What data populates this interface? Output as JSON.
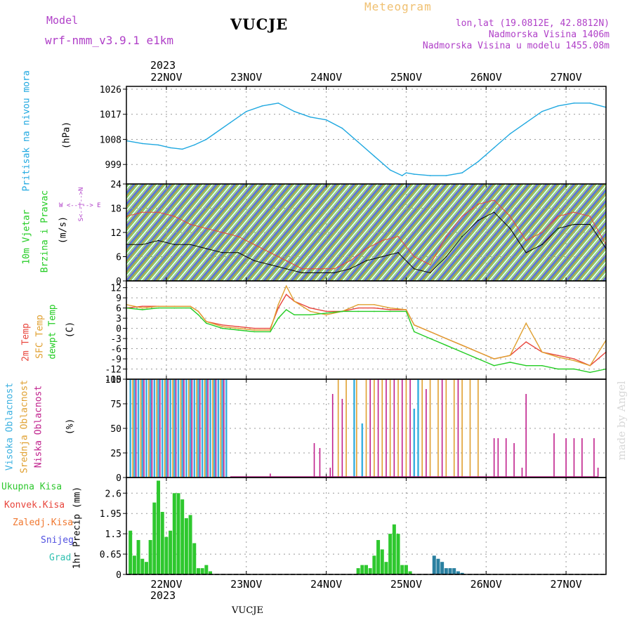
{
  "header": {
    "model_label": "Model",
    "model_name": "wrf-nmm_v3.9.1  e1km",
    "station": "VUCJE",
    "product": "Meteogram",
    "lonlat": "lon,lat (19.0812E, 42.8812N)",
    "elevation": "Nadmorska Visina 1406m",
    "model_elevation": "Nadmorska Visina u modelu 1455.08m",
    "top_year": "2023",
    "bottom_year": "2023",
    "footer_station": "VUCJE",
    "watermark": "made by Angel"
  },
  "colors": {
    "pressure": "#1fa8e0",
    "temp2m": "#e8453c",
    "sfc": "#e0a030",
    "dew": "#22cc22",
    "cloud_high": "#3ab0e0",
    "cloud_mid": "#e0a030",
    "cloud_low": "#c0208c",
    "precip_total": "#2ec82e",
    "model_label": "#b040c8",
    "product": "#f0c070"
  },
  "days": [
    "22NOV",
    "23NOV",
    "24NOV",
    "25NOV",
    "26NOV",
    "27NOV"
  ],
  "chart_data": [
    {
      "type": "line",
      "panel": "pressure",
      "ylabel_rot": "Pritisak na nivou mora",
      "unit": "(hPa)",
      "yticks": [
        999,
        1008,
        1017,
        1026
      ],
      "ylim": [
        992,
        1027
      ],
      "xlim": [
        21.5,
        27.5
      ],
      "grid": true,
      "series": [
        {
          "x": [
            21.5,
            21.7,
            21.9,
            22.05,
            22.2,
            22.35,
            22.5,
            22.6,
            22.8,
            23.0,
            23.2,
            23.4,
            23.6,
            23.8,
            24.0,
            24.2,
            24.4,
            24.6,
            24.8,
            24.95,
            25.0,
            25.1,
            25.3,
            25.5,
            25.7,
            25.9,
            26.1,
            26.3,
            26.5,
            26.7,
            26.9,
            27.1,
            27.3,
            27.5
          ],
          "y": [
            1007.5,
            1006.5,
            1006,
            1005,
            1004.5,
            1006,
            1008,
            1010,
            1014,
            1018,
            1020,
            1021,
            1018,
            1016,
            1015,
            1012,
            1007,
            1002,
            997,
            995,
            996,
            995.5,
            995,
            995,
            996,
            1000,
            1005,
            1010,
            1014,
            1018,
            1020,
            1021,
            1021,
            1019.5
          ]
        }
      ]
    },
    {
      "type": "line",
      "panel": "wind",
      "ylabel_rot1": "10m Vjetar",
      "ylabel_rot2": "Brzina i Pravac",
      "unit": "(m/s)",
      "compass": "W <--|--> E",
      "compass_v": "S<--|-->N",
      "yticks": [
        0,
        6,
        12,
        18,
        24
      ],
      "ylim": [
        0,
        24
      ],
      "xlim": [
        21.5,
        27.5
      ],
      "grid": true,
      "series": [
        {
          "name": "wind speed",
          "x": [
            21.5,
            21.7,
            21.9,
            22.1,
            22.3,
            22.5,
            22.7,
            22.9,
            23.1,
            23.3,
            23.5,
            23.7,
            23.9,
            24.1,
            24.3,
            24.5,
            24.7,
            24.9,
            25.1,
            25.3,
            25.5,
            25.7,
            25.9,
            26.1,
            26.3,
            26.5,
            26.7,
            26.9,
            27.1,
            27.3,
            27.5
          ],
          "y": [
            9,
            9,
            10,
            9,
            9,
            8,
            7,
            7,
            5,
            4,
            3,
            2,
            2,
            2,
            3,
            5,
            6,
            7,
            3,
            2,
            6,
            11,
            15,
            17,
            13,
            7,
            9,
            13,
            14,
            14,
            8
          ]
        },
        {
          "name": "wind gust",
          "x": [
            21.5,
            21.7,
            21.9,
            22.1,
            22.3,
            22.5,
            22.7,
            22.9,
            23.1,
            23.3,
            23.5,
            23.7,
            23.9,
            24.1,
            24.3,
            24.5,
            24.7,
            24.9,
            25.1,
            25.3,
            25.5,
            25.7,
            25.9,
            26.1,
            26.3,
            26.5,
            26.7,
            26.9,
            27.1,
            27.3,
            27.5
          ],
          "y": [
            16,
            17,
            17,
            16,
            14,
            13,
            12,
            11,
            9,
            7,
            5,
            3,
            3,
            3,
            5,
            8,
            10,
            11,
            6,
            4,
            11,
            16,
            19,
            20,
            16,
            10,
            12,
            16,
            17,
            16,
            9
          ]
        }
      ]
    },
    {
      "type": "line",
      "panel": "temperature",
      "ylabel_rot1": "2m Temp",
      "ylabel_rot2": "SFC Temp",
      "ylabel_rot3": "dewpt Temp",
      "unit": "(C)",
      "yticks": [
        -15,
        -12,
        -9,
        -6,
        -3,
        0,
        3,
        6,
        9,
        12
      ],
      "ylim": [
        -15,
        14
      ],
      "xlim": [
        21.5,
        27.5
      ],
      "grid": true,
      "series": [
        {
          "name": "2m Temp",
          "x": [
            21.5,
            21.7,
            21.9,
            22.1,
            22.3,
            22.4,
            22.5,
            22.7,
            22.9,
            23.1,
            23.3,
            23.4,
            23.5,
            23.6,
            23.8,
            24.0,
            24.2,
            24.4,
            24.6,
            24.8,
            25.0,
            25.1,
            25.3,
            25.5,
            25.7,
            25.9,
            26.1,
            26.3,
            26.5,
            26.7,
            26.9,
            27.1,
            27.3,
            27.5
          ],
          "y": [
            6,
            6.5,
            6.5,
            6.5,
            6.5,
            5,
            2,
            1,
            0.5,
            0,
            0,
            6,
            10,
            8,
            6,
            5,
            5,
            6,
            6,
            5.5,
            5.5,
            1,
            -1,
            -3,
            -5,
            -7,
            -9,
            -8,
            -4,
            -7,
            -8,
            -9,
            -11,
            -7
          ]
        },
        {
          "name": "SFC Temp",
          "x": [
            21.5,
            21.7,
            21.9,
            22.1,
            22.3,
            22.4,
            22.5,
            22.7,
            22.9,
            23.1,
            23.3,
            23.4,
            23.5,
            23.6,
            23.8,
            24.0,
            24.2,
            24.4,
            24.6,
            24.8,
            25.0,
            25.1,
            25.3,
            25.5,
            25.7,
            25.9,
            26.1,
            26.3,
            26.5,
            26.7,
            26.9,
            27.1,
            27.3,
            27.5
          ],
          "y": [
            7,
            6,
            6.5,
            6.5,
            6.5,
            5,
            2,
            0.5,
            0,
            -0.5,
            -0.5,
            7,
            12.5,
            8,
            5,
            4,
            5,
            7,
            7,
            6,
            5.5,
            1,
            -1,
            -3,
            -5,
            -7,
            -9,
            -8,
            1.5,
            -7,
            -8.5,
            -9.5,
            -11,
            -3.5
          ]
        },
        {
          "name": "dewpt Temp",
          "x": [
            21.5,
            21.7,
            21.9,
            22.1,
            22.3,
            22.4,
            22.5,
            22.7,
            22.9,
            23.1,
            23.3,
            23.4,
            23.5,
            23.6,
            23.8,
            24.0,
            24.2,
            24.4,
            24.6,
            24.8,
            25.0,
            25.1,
            25.3,
            25.5,
            25.7,
            25.9,
            26.1,
            26.3,
            26.5,
            26.7,
            26.9,
            27.1,
            27.3,
            27.5
          ],
          "y": [
            6,
            5.5,
            6,
            6,
            6,
            4,
            1.5,
            0,
            -0.5,
            -1,
            -1,
            3,
            5.5,
            4,
            4,
            4.5,
            5,
            5,
            5,
            5,
            5,
            -1,
            -3,
            -5,
            -7,
            -9,
            -11,
            -10,
            -11,
            -11,
            -12,
            -12,
            -13,
            -12
          ]
        }
      ]
    },
    {
      "type": "bar",
      "panel": "cloud",
      "ylabel_rot1": "Visoka Oblacnost",
      "ylabel_rot2": "Srednja Oblacnost",
      "ylabel_rot3": "Niska Oblacnost",
      "unit": "(%)",
      "yticks": [
        0,
        25,
        50,
        75,
        100
      ],
      "ylim": [
        0,
        100
      ],
      "xlim": [
        21.5,
        27.5
      ],
      "grid": true,
      "series": [
        {
          "name": "Visoka Oblacnost",
          "x": [
            21.55,
            21.6,
            21.65,
            21.7,
            21.75,
            21.8,
            21.85,
            21.9,
            21.95,
            22.0,
            22.05,
            22.1,
            22.15,
            22.2,
            22.25,
            22.3,
            22.35,
            22.4,
            22.45,
            22.5,
            22.55,
            22.6,
            22.65,
            22.7,
            22.75,
            24.35,
            24.45,
            25.1,
            25.15
          ],
          "values": [
            100,
            100,
            100,
            100,
            100,
            100,
            100,
            100,
            100,
            100,
            100,
            100,
            100,
            100,
            100,
            100,
            100,
            100,
            100,
            100,
            100,
            100,
            100,
            100,
            100,
            100,
            55,
            70,
            100
          ]
        },
        {
          "name": "Srednja Oblacnost",
          "x": [
            21.58,
            21.68,
            21.78,
            21.88,
            21.98,
            22.08,
            22.18,
            22.28,
            22.38,
            22.48,
            22.58,
            22.68,
            24.15,
            24.25,
            24.38,
            24.5,
            24.6,
            24.7,
            24.8,
            24.9,
            25.0,
            25.2,
            25.3,
            25.4,
            25.5,
            25.6,
            25.7,
            25.8,
            25.9
          ],
          "values": [
            100,
            100,
            100,
            100,
            100,
            100,
            100,
            100,
            100,
            100,
            100,
            100,
            100,
            100,
            100,
            100,
            100,
            100,
            100,
            100,
            100,
            100,
            100,
            100,
            100,
            100,
            100,
            100,
            100
          ]
        },
        {
          "name": "Niska Oblacnost",
          "x": [
            21.62,
            21.72,
            21.82,
            21.92,
            22.02,
            22.12,
            22.22,
            22.32,
            22.42,
            22.52,
            22.62,
            22.72,
            23.3,
            23.85,
            23.92,
            24.05,
            24.08,
            24.2,
            24.55,
            24.65,
            24.75,
            24.85,
            24.95,
            25.05,
            25.25,
            25.45,
            25.65,
            26.1,
            26.15,
            26.25,
            26.35,
            26.45,
            26.5,
            26.85,
            27.0,
            27.1,
            27.2,
            27.35,
            27.4
          ],
          "values": [
            100,
            100,
            100,
            100,
            100,
            100,
            100,
            100,
            100,
            100,
            100,
            100,
            4,
            35,
            30,
            10,
            85,
            80,
            100,
            100,
            100,
            100,
            100,
            100,
            90,
            100,
            100,
            40,
            40,
            40,
            35,
            10,
            85,
            45,
            40,
            40,
            40,
            40,
            10
          ]
        }
      ]
    },
    {
      "type": "bar",
      "panel": "precip",
      "ylabel_rot": "1hr Precip (mm)",
      "legend": [
        "Ukupna Kisa",
        "Konvek.Kisa",
        "Zaledj.Kisa",
        "Snijeg",
        "Grad"
      ],
      "legend_colors": [
        "#2ec82e",
        "#e8453c",
        "#f07830",
        "#5050e0",
        "#30c0b0"
      ],
      "yticks": [
        0,
        0.65,
        1.3,
        1.95,
        2.6
      ],
      "ylim": [
        0,
        3.1
      ],
      "xlim": [
        21.5,
        27.5
      ],
      "grid": true,
      "series": [
        {
          "name": "Ukupna Kisa",
          "x": [
            21.55,
            21.6,
            21.65,
            21.7,
            21.75,
            21.8,
            21.85,
            21.9,
            21.95,
            22.0,
            22.05,
            22.1,
            22.15,
            22.2,
            22.25,
            22.3,
            22.35,
            22.4,
            22.45,
            22.5,
            22.55,
            24.4,
            24.45,
            24.5,
            24.55,
            24.6,
            24.65,
            24.7,
            24.75,
            24.8,
            24.85,
            24.9,
            24.95,
            25.0,
            25.05
          ],
          "values": [
            1.4,
            0.6,
            1.1,
            0.5,
            0.4,
            1.1,
            2.3,
            3.0,
            2.0,
            1.2,
            1.4,
            2.6,
            2.6,
            2.4,
            1.8,
            1.9,
            1.0,
            0.2,
            0.2,
            0.3,
            0.1,
            0.2,
            0.3,
            0.3,
            0.2,
            0.6,
            1.1,
            0.8,
            0.4,
            1.3,
            1.6,
            1.3,
            0.3,
            0.3,
            0.1
          ]
        },
        {
          "name": "Snijeg",
          "x": [
            25.35,
            25.4,
            25.45,
            25.5,
            25.55,
            25.6,
            25.65,
            25.7
          ],
          "values": [
            0.6,
            0.5,
            0.4,
            0.2,
            0.2,
            0.2,
            0.1,
            0.05
          ]
        }
      ]
    }
  ]
}
